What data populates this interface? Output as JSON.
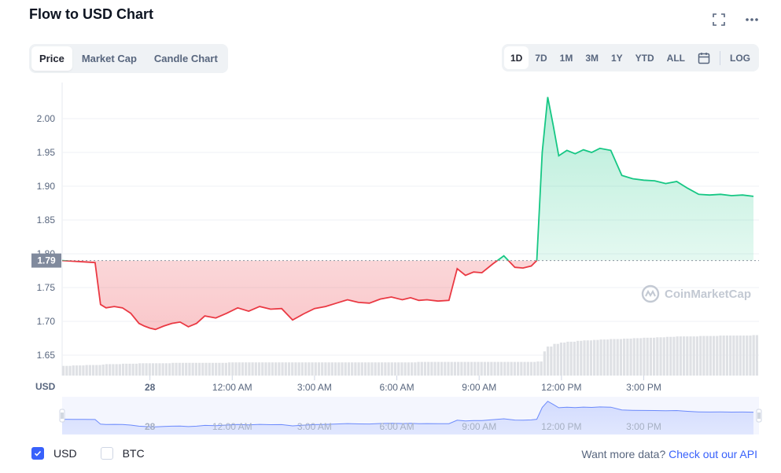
{
  "header": {
    "title": "Flow to USD Chart"
  },
  "icons": {
    "fullscreen": "fullscreen-icon",
    "more": "more-icon",
    "calendar": "calendar-icon",
    "logo": "coinmarketcap-logo-icon"
  },
  "tabs": [
    {
      "label": "Price",
      "active": true
    },
    {
      "label": "Market Cap",
      "active": false
    },
    {
      "label": "Candle Chart",
      "active": false
    }
  ],
  "ranges": [
    {
      "label": "1D",
      "active": true
    },
    {
      "label": "7D",
      "active": false
    },
    {
      "label": "1M",
      "active": false
    },
    {
      "label": "3M",
      "active": false
    },
    {
      "label": "1Y",
      "active": false
    },
    {
      "label": "YTD",
      "active": false
    },
    {
      "label": "ALL",
      "active": false
    }
  ],
  "log_label": "LOG",
  "watermark": "CoinMarketCap",
  "footer": {
    "usd_label": "USD",
    "btc_label": "BTC",
    "usd_checked": true,
    "btc_checked": false,
    "api_prefix": "Want more data?",
    "api_link": "Check out our API"
  },
  "colors": {
    "up": "#16c784",
    "down": "#ea3943",
    "brand": "#3861fb"
  },
  "chart_data": {
    "type": "line",
    "currency_label": "USD",
    "baseline": 1.79,
    "baseline_label": "1.79",
    "ylim": [
      1.63,
      2.06
    ],
    "yticks": [
      1.65,
      1.7,
      1.75,
      1.8,
      1.85,
      1.9,
      1.95,
      2.0
    ],
    "ytick_labels": [
      "1.65",
      "1.70",
      "1.75",
      "1.80",
      "1.85",
      "1.90",
      "1.95",
      "2.00"
    ],
    "x_range": [
      -3.2,
      22.2
    ],
    "xticks": [
      0,
      3,
      6,
      9,
      12,
      15,
      18
    ],
    "xtick_labels": [
      "28",
      "12:00 AM",
      "3:00 AM",
      "6:00 AM",
      "9:00 AM",
      "12:00 PM",
      "3:00 PM"
    ],
    "x": [
      -3.2,
      -2.8,
      -2.4,
      -2.0,
      -1.8,
      -1.6,
      -1.3,
      -1.0,
      -0.7,
      -0.4,
      -0.2,
      0.0,
      0.2,
      0.5,
      0.8,
      1.1,
      1.4,
      1.7,
      2.0,
      2.4,
      2.8,
      3.2,
      3.6,
      4.0,
      4.4,
      4.8,
      5.2,
      5.6,
      6.0,
      6.4,
      6.8,
      7.2,
      7.6,
      8.0,
      8.4,
      8.8,
      9.2,
      9.5,
      9.8,
      10.1,
      10.5,
      10.9,
      11.2,
      11.5,
      11.8,
      12.1,
      12.5,
      12.9,
      13.3,
      13.6,
      13.9,
      14.1,
      14.3,
      14.5,
      14.7,
      14.9,
      15.2,
      15.5,
      15.8,
      16.1,
      16.4,
      16.8,
      17.2,
      17.6,
      18.0,
      18.4,
      18.8,
      19.2,
      19.6,
      20.0,
      20.4,
      20.8,
      21.2,
      21.6,
      22.0
    ],
    "y": [
      1.79,
      1.789,
      1.788,
      1.787,
      1.725,
      1.72,
      1.722,
      1.72,
      1.712,
      1.697,
      1.693,
      1.69,
      1.688,
      1.693,
      1.697,
      1.699,
      1.692,
      1.697,
      1.708,
      1.705,
      1.712,
      1.72,
      1.715,
      1.722,
      1.718,
      1.719,
      1.702,
      1.711,
      1.719,
      1.722,
      1.727,
      1.732,
      1.728,
      1.727,
      1.733,
      1.736,
      1.732,
      1.735,
      1.731,
      1.732,
      1.73,
      1.731,
      1.778,
      1.768,
      1.773,
      1.772,
      1.785,
      1.797,
      1.78,
      1.779,
      1.782,
      1.79,
      1.95,
      2.032,
      1.99,
      1.945,
      1.953,
      1.948,
      1.954,
      1.95,
      1.956,
      1.953,
      1.916,
      1.911,
      1.909,
      1.908,
      1.904,
      1.907,
      1.897,
      1.888,
      1.887,
      1.888,
      1.886,
      1.887,
      1.885
    ],
    "volume": [
      0.22,
      0.23,
      0.24,
      0.24,
      0.25,
      0.26,
      0.26,
      0.27,
      0.27,
      0.28,
      0.28,
      0.28,
      0.28,
      0.28,
      0.29,
      0.29,
      0.29,
      0.29,
      0.29,
      0.29,
      0.3,
      0.3,
      0.3,
      0.3,
      0.3,
      0.3,
      0.3,
      0.3,
      0.3,
      0.3,
      0.3,
      0.3,
      0.3,
      0.3,
      0.3,
      0.3,
      0.3,
      0.3,
      0.31,
      0.31,
      0.31,
      0.31,
      0.31,
      0.31,
      0.31,
      0.31,
      0.31,
      0.31,
      0.31,
      0.31,
      0.31,
      0.32,
      0.55,
      0.66,
      0.72,
      0.75,
      0.77,
      0.79,
      0.8,
      0.81,
      0.82,
      0.83,
      0.84,
      0.85,
      0.86,
      0.87,
      0.88,
      0.89,
      0.89,
      0.9,
      0.9,
      0.91,
      0.91,
      0.91,
      0.92
    ]
  }
}
